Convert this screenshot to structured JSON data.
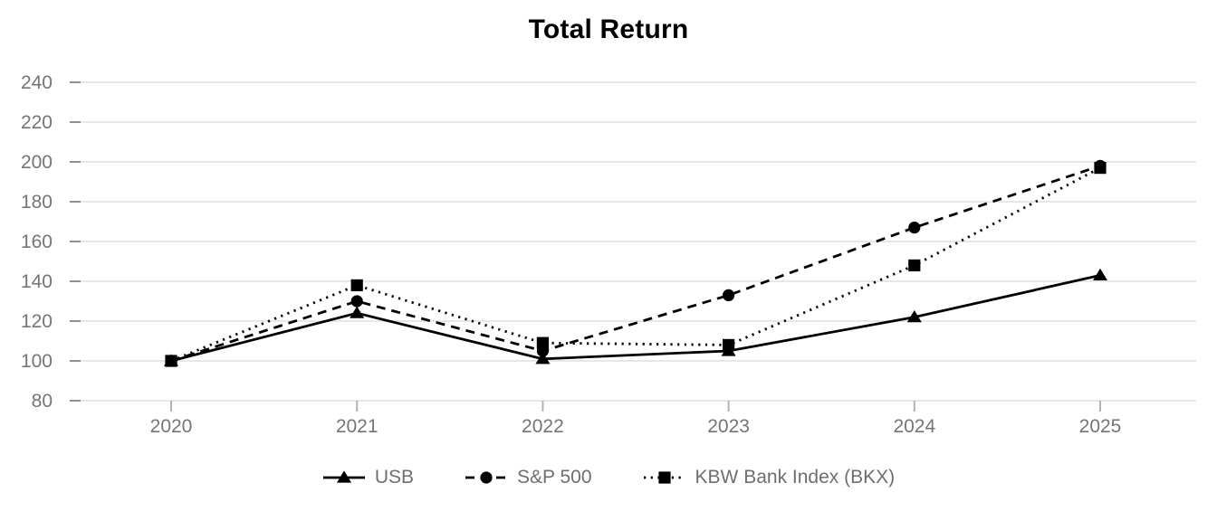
{
  "chart_data": {
    "type": "line",
    "title": "Total Return",
    "xlabel": "",
    "ylabel": "",
    "categories": [
      "2020",
      "2021",
      "2022",
      "2023",
      "2024",
      "2025"
    ],
    "y_ticks": [
      240,
      220,
      200,
      180,
      160,
      140,
      120,
      100,
      80
    ],
    "ylim": [
      80,
      240
    ],
    "grid": true,
    "legend_position": "bottom",
    "series": [
      {
        "name": "USB",
        "marker": "triangle",
        "line_style": "solid",
        "values": [
          100,
          124,
          101,
          105,
          122,
          143
        ]
      },
      {
        "name": "S&P 500",
        "marker": "circle",
        "line_style": "dashed",
        "values": [
          100,
          130,
          105,
          133,
          167,
          198
        ]
      },
      {
        "name": "KBW Bank Index (BKX)",
        "marker": "square",
        "line_style": "dotted",
        "values": [
          100,
          138,
          109,
          108,
          148,
          197
        ]
      }
    ],
    "colors": {
      "series": "#000000",
      "grid": "#e7e7e7",
      "y_tick_mark": "#8f8f8f",
      "x_tick_mark": "#b3b3b3",
      "axis_label": "#757575",
      "legend_label": "#6e6e6e",
      "title": "#000000",
      "background": "#ffffff"
    }
  }
}
